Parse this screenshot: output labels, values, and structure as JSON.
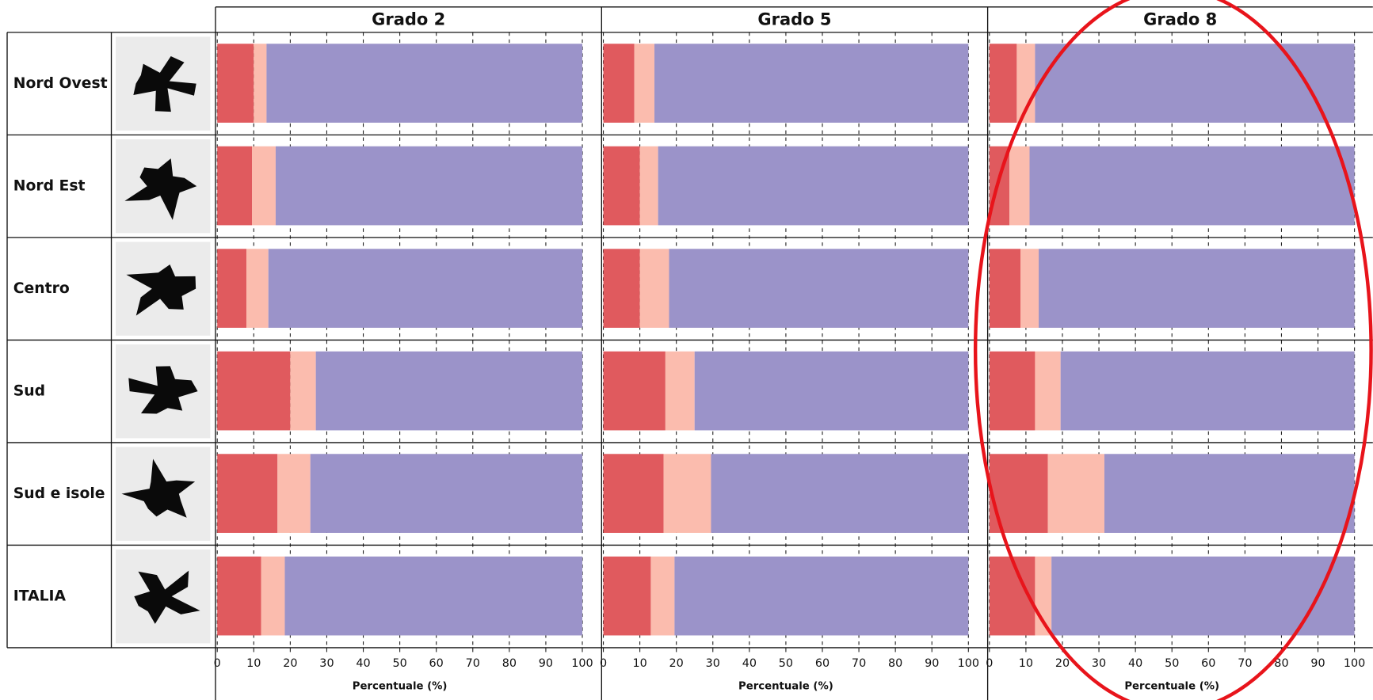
{
  "chart_data": {
    "type": "bar",
    "orientation": "horizontal",
    "stacked": true,
    "categories": [
      "Nord Ovest",
      "Nord Est",
      "Centro",
      "Sud",
      "Sud e isole",
      "ITALIA"
    ],
    "xlabel": "Percentuale (%)",
    "xlim": [
      0,
      100
    ],
    "xticks": [
      0,
      10,
      20,
      30,
      40,
      50,
      60,
      70,
      80,
      90,
      100
    ],
    "grid": true,
    "panels": [
      {
        "title": "Grado 2",
        "series": [
          {
            "color": "#e05a5e",
            "values": [
              10,
              9.5,
              8,
              20,
              16.5,
              12
            ]
          },
          {
            "color": "#fbbcae",
            "values": [
              3.5,
              6.5,
              6,
              7,
              9,
              6.5
            ]
          },
          {
            "color": "#9b93c9",
            "values": [
              86.5,
              84,
              86,
              73,
              74.5,
              81.5
            ]
          }
        ]
      },
      {
        "title": "Grado 5",
        "series": [
          {
            "color": "#e05a5e",
            "values": [
              8.5,
              10,
              10,
              17,
              16.5,
              13
            ]
          },
          {
            "color": "#fbbcae",
            "values": [
              5.5,
              5,
              8,
              8,
              13,
              6.5
            ]
          },
          {
            "color": "#9b93c9",
            "values": [
              86,
              85,
              82,
              75,
              70.5,
              80.5
            ]
          }
        ]
      },
      {
        "title": "Grado 8",
        "series": [
          {
            "color": "#e05a5e",
            "values": [
              7.5,
              5.5,
              8.5,
              12.5,
              16,
              12.5
            ]
          },
          {
            "color": "#fbbcae",
            "values": [
              5,
              5.5,
              5,
              7,
              15.5,
              4.5
            ]
          },
          {
            "color": "#9b93c9",
            "values": [
              87.5,
              89,
              86.5,
              80.5,
              68.5,
              83
            ]
          }
        ]
      }
    ]
  }
}
